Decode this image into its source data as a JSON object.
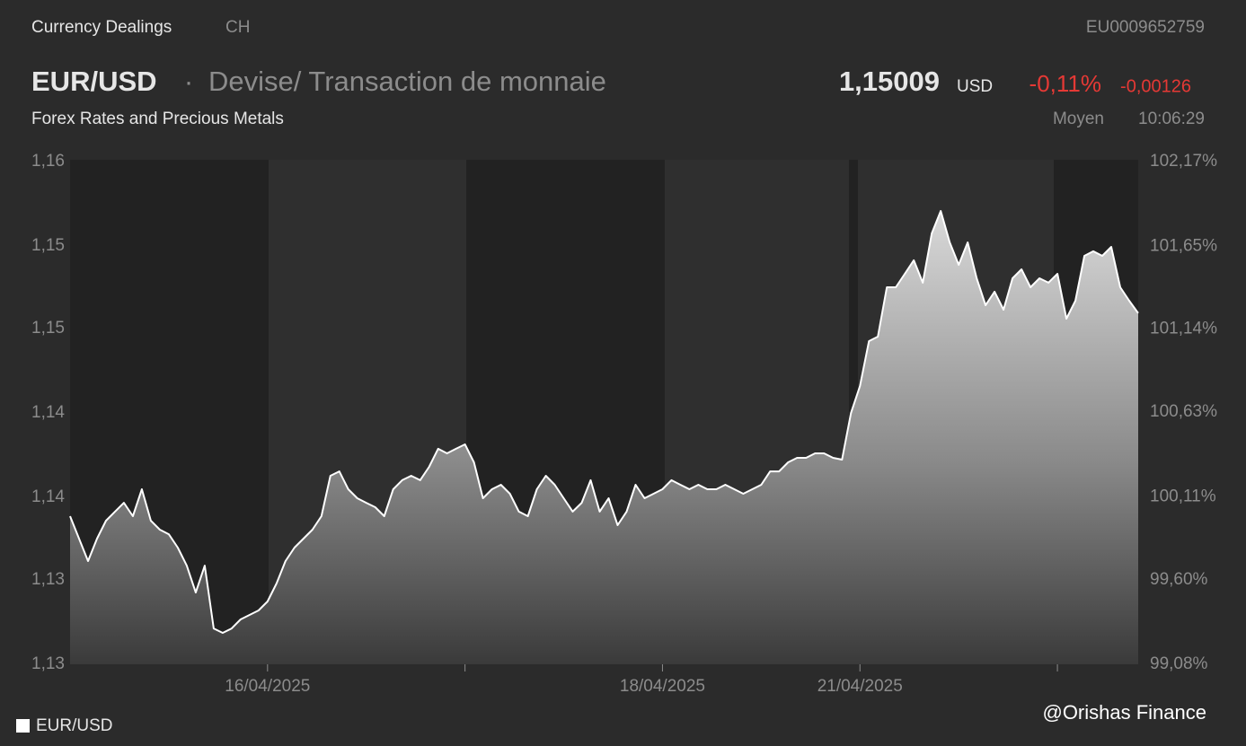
{
  "header": {
    "section": "Currency Dealings",
    "country": "CH",
    "isin": "EU0009652759",
    "symbol": "EUR/USD",
    "separator": "·",
    "description": "Devise/ Transaction de monnaie",
    "category": "Forex Rates and Precious Metals",
    "price": "1,15009",
    "currency": "USD",
    "change_percent": "-0,11%",
    "change_absolute": "-0,00126",
    "price_type": "Moyen",
    "time": "10:06:29"
  },
  "chart_data": {
    "type": "area",
    "series": [
      {
        "name": "EUR/USD",
        "color": "#ffffff",
        "values": [
          1.13587,
          1.1343,
          1.13273,
          1.1343,
          1.13556,
          1.13619,
          1.13681,
          1.13587,
          1.13776,
          1.13556,
          1.13493,
          1.13461,
          1.13367,
          1.13241,
          1.13053,
          1.13241,
          1.12801,
          1.1277,
          1.12801,
          1.12864,
          1.12896,
          1.12927,
          1.1299,
          1.13116,
          1.13273,
          1.13367,
          1.1343,
          1.13493,
          1.13587,
          1.1387,
          1.13901,
          1.13776,
          1.13713,
          1.13681,
          1.1365,
          1.13587,
          1.13776,
          1.13839,
          1.1387,
          1.13839,
          1.13933,
          1.14059,
          1.14027,
          1.14059,
          1.1409,
          1.13964,
          1.13713,
          1.13776,
          1.13807,
          1.13744,
          1.13619,
          1.13587,
          1.13776,
          1.1387,
          1.13807,
          1.13713,
          1.13619,
          1.13681,
          1.13839,
          1.13619,
          1.13713,
          1.13524,
          1.13619,
          1.13807,
          1.13713,
          1.13744,
          1.13776,
          1.13839,
          1.13807,
          1.13776,
          1.13807,
          1.13776,
          1.13776,
          1.13807,
          1.13776,
          1.13744,
          1.13776,
          1.13807,
          1.13901,
          1.13901,
          1.13964,
          1.13996,
          1.13996,
          1.14027,
          1.14027,
          1.13996,
          1.13983,
          1.1431,
          1.14499,
          1.14813,
          1.14844,
          1.1519,
          1.1519,
          1.15284,
          1.15379,
          1.15222,
          1.15567,
          1.15724,
          1.15504,
          1.15347,
          1.15504,
          1.15253,
          1.15064,
          1.15159,
          1.15033,
          1.15253,
          1.15316,
          1.1519,
          1.15253,
          1.15222,
          1.15284,
          1.1497,
          1.15096,
          1.1541,
          1.15442,
          1.1541,
          1.15473,
          1.1519,
          1.15096,
          1.15009
        ]
      }
    ],
    "xlim": [
      0,
      119
    ],
    "xticks": [
      {
        "value": 22,
        "label": "16/04/2025"
      },
      {
        "value": 44,
        "label": null
      },
      {
        "value": 66,
        "label": "18/04/2025"
      },
      {
        "value": 88,
        "label": "21/04/2025"
      },
      {
        "value": 110,
        "label": null
      }
    ],
    "ylim": [
      1.1255,
      1.1607
    ],
    "yticks": [
      {
        "value": 1.1255,
        "label": "1,13"
      },
      {
        "value": 1.1314,
        "label": "1,13"
      },
      {
        "value": 1.1372,
        "label": "1,14"
      },
      {
        "value": 1.1431,
        "label": "1,14"
      },
      {
        "value": 1.149,
        "label": "1,15"
      },
      {
        "value": 1.1548,
        "label": "1,15"
      },
      {
        "value": 1.1607,
        "label": "1,16"
      }
    ],
    "y2lim": [
      99.08,
      102.17
    ],
    "y2ticks": [
      {
        "value": 99.08,
        "label": "99,08%"
      },
      {
        "value": 99.6,
        "label": "99,60%"
      },
      {
        "value": 100.11,
        "label": "100,11%"
      },
      {
        "value": 100.63,
        "label": "100,63%"
      },
      {
        "value": 101.14,
        "label": "101,14%"
      },
      {
        "value": 101.65,
        "label": "101,65%"
      },
      {
        "value": 102.17,
        "label": "102,17%"
      }
    ],
    "grid": false,
    "legend": "bottom-left"
  },
  "watermark": "@Orishas Finance"
}
